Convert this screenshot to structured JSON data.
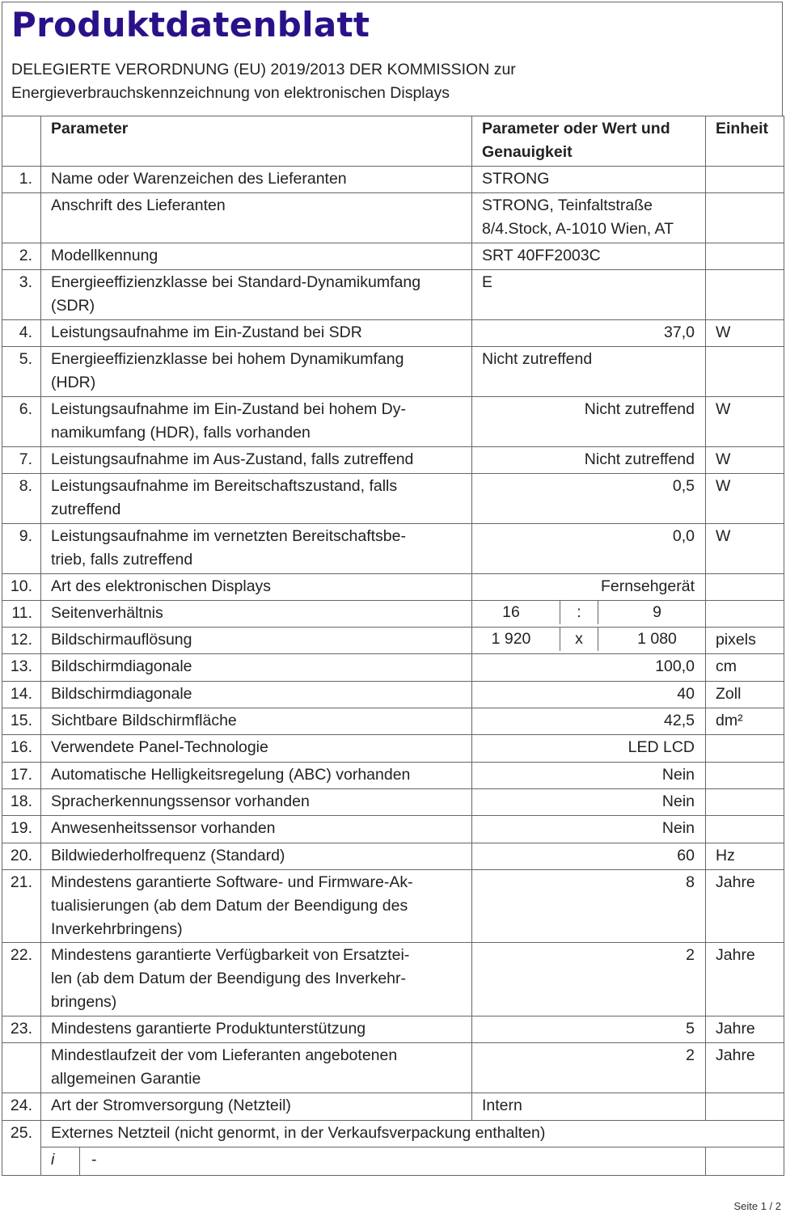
{
  "title": "Produktdatenblatt",
  "subtitle": "DELEGIERTE VERORDNUNG (EU) 2019/2013 DER KOMMISSION zur\nEnergieverbrauchskennzeichnung von elektronischen Displays",
  "header": {
    "param": "Parameter",
    "value": "Parameter oder Wert und\nGenauigkeit",
    "unit": "Einheit"
  },
  "rows": [
    {
      "num": "1.",
      "param": "Name oder Warenzeichen des Lieferanten",
      "value": "STRONG",
      "unit": "",
      "align": "left"
    },
    {
      "num": "",
      "param": "Anschrift des Lieferanten",
      "value": "STRONG, Teinfaltstraße\n8/4.Stock, A-1010 Wien, AT",
      "unit": "",
      "align": "left"
    },
    {
      "num": "2.",
      "param": "Modellkennung",
      "value": "SRT 40FF2003C",
      "unit": "",
      "align": "left"
    },
    {
      "num": "3.",
      "param": "Energieeffizienzklasse bei Standard-Dynamikumfang\n(SDR)",
      "value": "E",
      "unit": "",
      "align": "left"
    },
    {
      "num": "4.",
      "param": "Leistungsaufnahme im Ein-Zustand bei SDR",
      "value": "37,0",
      "unit": "W",
      "align": "right"
    },
    {
      "num": "5.",
      "param": "Energieeffizienzklasse bei hohem Dynamikumfang\n(HDR)",
      "value": "Nicht zutreffend",
      "unit": "",
      "align": "left"
    },
    {
      "num": "6.",
      "param": "Leistungsaufnahme im Ein-Zustand bei hohem Dy-\nnamikumfang (HDR), falls vorhanden",
      "value": "Nicht zutreffend",
      "unit": "W",
      "align": "right"
    },
    {
      "num": "7.",
      "param": "Leistungsaufnahme im Aus-Zustand, falls zutreffend",
      "value": "Nicht zutreffend",
      "unit": "W",
      "align": "right"
    },
    {
      "num": "8.",
      "param": "Leistungsaufnahme im Bereitschaftszustand, falls\nzutreffend",
      "value": "0,5",
      "unit": "W",
      "align": "right"
    },
    {
      "num": "9.",
      "param": "Leistungsaufnahme im vernetzten Bereitschaftsbe-\ntrieb, falls zutreffend",
      "value": "0,0",
      "unit": "W",
      "align": "right"
    },
    {
      "num": "10.",
      "param": "Art des elektronischen Displays",
      "value": "Fernsehgerät",
      "unit": "",
      "align": "right"
    },
    {
      "num": "11.",
      "param": "Seitenverhältnis",
      "split": [
        "16",
        ":",
        "9"
      ],
      "unit": ""
    },
    {
      "num": "12.",
      "param": "Bildschirmauflösung",
      "split": [
        "1 920",
        "x",
        "1 080"
      ],
      "unit": "pixels"
    },
    {
      "num": "13.",
      "param": "Bildschirmdiagonale",
      "value": "100,0",
      "unit": "cm",
      "align": "right"
    },
    {
      "num": "14.",
      "param": "Bildschirmdiagonale",
      "value": "40",
      "unit": "Zoll",
      "align": "right"
    },
    {
      "num": "15.",
      "param": "Sichtbare Bildschirmfläche",
      "value": "42,5",
      "unit": "dm²",
      "align": "right"
    },
    {
      "num": "16.",
      "param": "Verwendete Panel-Technologie",
      "value": "LED LCD",
      "unit": "",
      "align": "right"
    },
    {
      "num": "17.",
      "param": "Automatische Helligkeitsregelung (ABC) vorhanden",
      "value": "Nein",
      "unit": "",
      "align": "right"
    },
    {
      "num": "18.",
      "param": "Spracherkennungssensor vorhanden",
      "value": "Nein",
      "unit": "",
      "align": "right"
    },
    {
      "num": "19.",
      "param": "Anwesenheitssensor vorhanden",
      "value": "Nein",
      "unit": "",
      "align": "right"
    },
    {
      "num": "20.",
      "param": "Bildwiederholfrequenz (Standard)",
      "value": "60",
      "unit": "Hz",
      "align": "right"
    },
    {
      "num": "21.",
      "param": "Mindestens garantierte Software- und Firmware-Ak-\ntualisierungen (ab dem Datum der Beendigung des\nInverkehrbringens)",
      "value": "8",
      "unit": "Jahre",
      "align": "right"
    },
    {
      "num": "22.",
      "param": "Mindestens garantierte Verfügbarkeit von Ersatztei-\nlen (ab dem Datum der Beendigung des Inverkehr-\nbringens)",
      "value": "2",
      "unit": "Jahre",
      "align": "right"
    },
    {
      "num": "23.",
      "param": "Mindestens garantierte Produktunterstützung",
      "value": "5",
      "unit": "Jahre",
      "align": "right"
    },
    {
      "num": "",
      "param": "Mindestlaufzeit der vom Lieferanten angebotenen\nallgemeinen Garantie",
      "value": "2",
      "unit": "Jahre",
      "align": "right"
    },
    {
      "num": "24.",
      "param": "Art der Stromversorgung (Netzteil)",
      "value": "Intern",
      "unit": "",
      "align": "left"
    }
  ],
  "row25": {
    "num": "25.",
    "text": "Externes Netzteil (nicht genormt, in der Verkaufsverpackung enthalten)",
    "sub_label": "i",
    "sub_value": "-",
    "sub_unit": ""
  },
  "footer": "Seite 1 / 2"
}
